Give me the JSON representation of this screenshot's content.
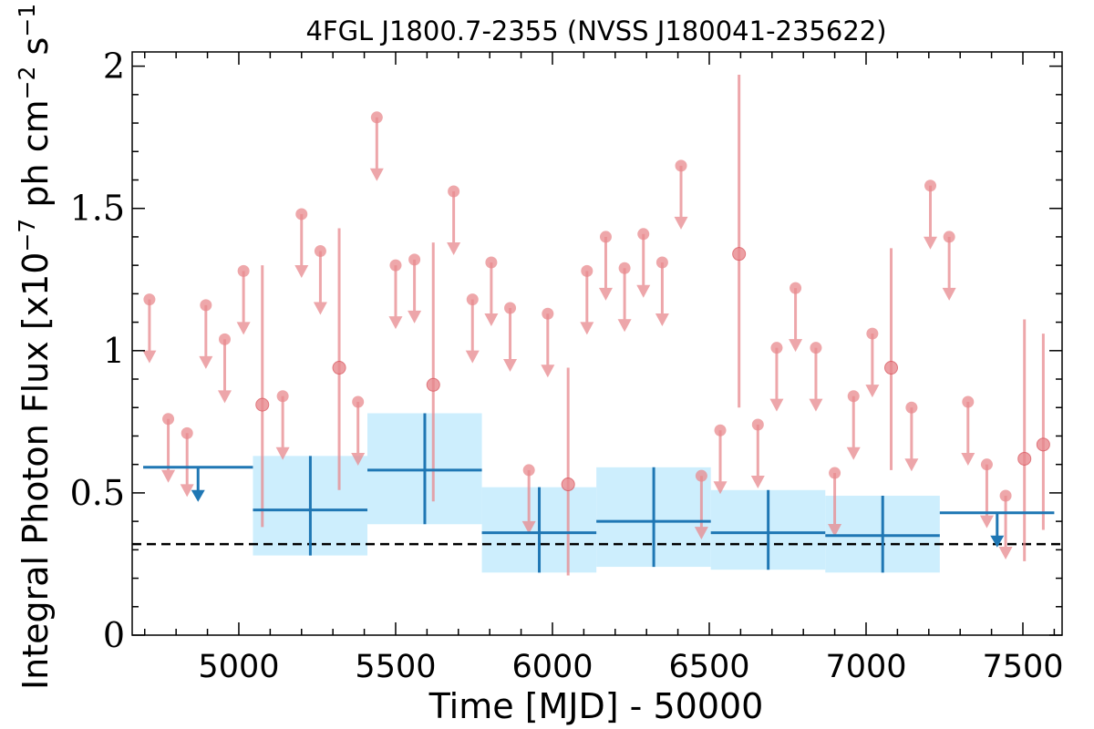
{
  "chart_data": {
    "type": "scatter",
    "title": "4FGL J1800.7-2355 (NVSS J180041-235622)",
    "xlabel": "Time [MJD] - 50000",
    "ylabel_parts": [
      "Integral Photon Flux [x10",
      "−7",
      " ph cm",
      "−2",
      " s",
      "−1",
      "]"
    ],
    "xlim": [
      4660,
      7625
    ],
    "ylim": [
      0,
      2.05
    ],
    "x_ticks": [
      5000,
      5500,
      6000,
      6500,
      7000,
      7500
    ],
    "x_tick_labels": [
      "5000",
      "5500",
      "6000",
      "6500",
      "7000",
      "7500"
    ],
    "y_ticks": [
      0,
      0.5,
      1,
      1.5,
      2
    ],
    "y_tick_labels": [
      "0",
      "0.5",
      "1",
      "1.5",
      "2"
    ],
    "reference_level": 0.32,
    "colors": {
      "fine_bins": "#e8898e",
      "coarse_bins": "#1f77b4",
      "band_fill": "#cdeefd",
      "reference_line": "#000000"
    },
    "fine_upper_limits": [
      {
        "x": 4715,
        "y": 1.18
      },
      {
        "x": 4775,
        "y": 0.76
      },
      {
        "x": 4835,
        "y": 0.71
      },
      {
        "x": 4895,
        "y": 1.16
      },
      {
        "x": 4955,
        "y": 1.04
      },
      {
        "x": 5015,
        "y": 1.28
      },
      {
        "x": 5140,
        "y": 0.84
      },
      {
        "x": 5200,
        "y": 1.48
      },
      {
        "x": 5260,
        "y": 1.35
      },
      {
        "x": 5380,
        "y": 0.82
      },
      {
        "x": 5440,
        "y": 1.82
      },
      {
        "x": 5500,
        "y": 1.3
      },
      {
        "x": 5560,
        "y": 1.32
      },
      {
        "x": 5685,
        "y": 1.56
      },
      {
        "x": 5745,
        "y": 1.18
      },
      {
        "x": 5805,
        "y": 1.31
      },
      {
        "x": 5865,
        "y": 1.15
      },
      {
        "x": 5925,
        "y": 0.58
      },
      {
        "x": 5985,
        "y": 1.13
      },
      {
        "x": 6110,
        "y": 1.28
      },
      {
        "x": 6170,
        "y": 1.4
      },
      {
        "x": 6230,
        "y": 1.29
      },
      {
        "x": 6290,
        "y": 1.41
      },
      {
        "x": 6350,
        "y": 1.31
      },
      {
        "x": 6410,
        "y": 1.65
      },
      {
        "x": 6475,
        "y": 0.56
      },
      {
        "x": 6535,
        "y": 0.72
      },
      {
        "x": 6655,
        "y": 0.74
      },
      {
        "x": 6715,
        "y": 1.01
      },
      {
        "x": 6775,
        "y": 1.22
      },
      {
        "x": 6840,
        "y": 1.01
      },
      {
        "x": 6900,
        "y": 0.57
      },
      {
        "x": 6960,
        "y": 0.84
      },
      {
        "x": 7020,
        "y": 1.06
      },
      {
        "x": 7145,
        "y": 0.8
      },
      {
        "x": 7205,
        "y": 1.58
      },
      {
        "x": 7265,
        "y": 1.4
      },
      {
        "x": 7325,
        "y": 0.82
      },
      {
        "x": 7385,
        "y": 0.6
      },
      {
        "x": 7445,
        "y": 0.49
      }
    ],
    "fine_detections": [
      {
        "x": 5075,
        "y": 0.81,
        "y_low": 0.38,
        "y_high": 1.3
      },
      {
        "x": 5320,
        "y": 0.94,
        "y_low": 0.51,
        "y_high": 1.43
      },
      {
        "x": 5620,
        "y": 0.88,
        "y_low": 0.47,
        "y_high": 1.38
      },
      {
        "x": 6050,
        "y": 0.53,
        "y_low": 0.21,
        "y_high": 0.94
      },
      {
        "x": 6595,
        "y": 1.34,
        "y_low": 0.8,
        "y_high": 1.97
      },
      {
        "x": 7080,
        "y": 0.94,
        "y_low": 0.58,
        "y_high": 1.36
      },
      {
        "x": 7505,
        "y": 0.62,
        "y_low": 0.26,
        "y_high": 1.11
      },
      {
        "x": 7565,
        "y": 0.67,
        "y_low": 0.37,
        "y_high": 1.06
      }
    ],
    "coarse_bins": [
      {
        "x_start": 4695,
        "x_end": 5045,
        "y": 0.59,
        "upper_limit": true,
        "x_arrow": 4870
      },
      {
        "x_start": 5045,
        "x_end": 5410,
        "y": 0.44,
        "y_low": 0.28,
        "y_high": 0.63,
        "x_center": 5228
      },
      {
        "x_start": 5410,
        "x_end": 5775,
        "y": 0.58,
        "y_low": 0.39,
        "y_high": 0.78,
        "x_center": 5593
      },
      {
        "x_start": 5775,
        "x_end": 6140,
        "y": 0.36,
        "y_low": 0.22,
        "y_high": 0.52,
        "x_center": 5958
      },
      {
        "x_start": 6140,
        "x_end": 6505,
        "y": 0.4,
        "y_low": 0.24,
        "y_high": 0.59,
        "x_center": 6323
      },
      {
        "x_start": 6505,
        "x_end": 6870,
        "y": 0.36,
        "y_low": 0.23,
        "y_high": 0.51,
        "x_center": 6688
      },
      {
        "x_start": 6870,
        "x_end": 7235,
        "y": 0.35,
        "y_low": 0.22,
        "y_high": 0.49,
        "x_center": 7053
      },
      {
        "x_start": 7235,
        "x_end": 7600,
        "y": 0.43,
        "upper_limit": true,
        "x_arrow": 7418
      }
    ]
  }
}
